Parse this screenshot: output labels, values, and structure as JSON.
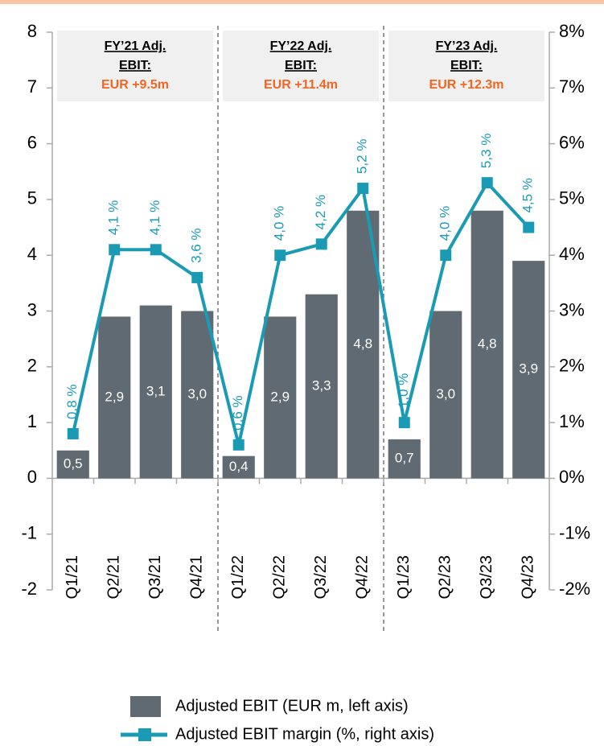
{
  "chart_data": {
    "type": "bar_line",
    "categories": [
      "Q1/21",
      "Q2/21",
      "Q3/21",
      "Q4/21",
      "Q1/22",
      "Q2/22",
      "Q3/22",
      "Q4/22",
      "Q1/23",
      "Q2/23",
      "Q3/23",
      "Q4/23"
    ],
    "series": [
      {
        "name": "Adjusted EBIT (EUR m, left axis)",
        "type": "bar",
        "axis": "y",
        "color": "#5f6a72",
        "values": [
          0.5,
          2.9,
          3.1,
          3.0,
          0.4,
          2.9,
          3.3,
          4.8,
          0.7,
          3.0,
          4.8,
          3.9
        ],
        "value_labels": [
          "0,5",
          "2,9",
          "3,1",
          "3,0",
          "0,4",
          "2,9",
          "3,3",
          "4,8",
          "0,7",
          "3,0",
          "4,8",
          "3,9"
        ]
      },
      {
        "name": "Adjusted EBIT margin (%, right axis)",
        "type": "line",
        "axis": "y2",
        "color": "#1a9bb3",
        "values": [
          0.8,
          4.1,
          4.1,
          3.6,
          0.6,
          4.0,
          4.2,
          5.2,
          1.0,
          4.0,
          5.3,
          4.5
        ],
        "value_labels": [
          "0,8 %",
          "4,1 %",
          "4,1 %",
          "3,6 %",
          "0,6 %",
          "4,0 %",
          "4,2 %",
          "5,2 %",
          "1,0 %",
          "4,0 %",
          "5,3 %",
          "4,5 %"
        ]
      }
    ],
    "ylim": [
      -2,
      8
    ],
    "yticks": [
      -2,
      -1,
      0,
      1,
      2,
      3,
      4,
      5,
      6,
      7,
      8
    ],
    "y2lim": [
      -2,
      8
    ],
    "y2ticks": [
      {
        "value": -2,
        "label": "-2%"
      },
      {
        "value": -1,
        "label": "-1%"
      },
      {
        "value": 0,
        "label": "0%"
      },
      {
        "value": 1,
        "label": "1%"
      },
      {
        "value": 2,
        "label": "2%"
      },
      {
        "value": 3,
        "label": "3%"
      },
      {
        "value": 4,
        "label": "4%"
      },
      {
        "value": 5,
        "label": "5%"
      },
      {
        "value": 6,
        "label": "6%"
      },
      {
        "value": 7,
        "label": "7%"
      },
      {
        "value": 8,
        "label": "8%"
      }
    ],
    "annotations": [
      {
        "heading": [
          "FY’21 Adj.",
          "EBIT:"
        ],
        "text": "EUR +9.5m"
      },
      {
        "heading": [
          "FY’22 Adj.",
          "EBIT:"
        ],
        "text": "EUR +11.4m"
      },
      {
        "heading": [
          "FY’23 Adj.",
          "EBIT:"
        ],
        "text": "EUR +12.3m"
      }
    ]
  }
}
